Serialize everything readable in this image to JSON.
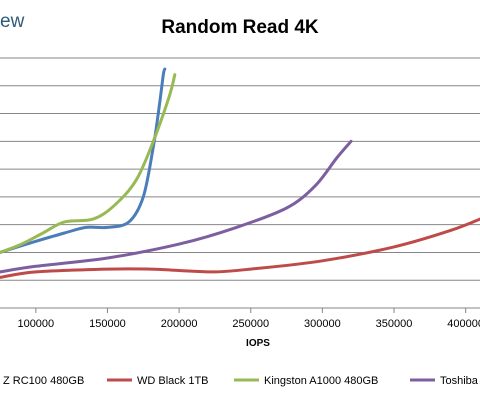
{
  "brand": {
    "logo_fragment": "ew"
  },
  "chart_data": {
    "type": "line",
    "title": "Random Read 4K",
    "xlabel": "IOPS",
    "ylabel": "",
    "xlim": [
      75000,
      410000
    ],
    "ylim": [
      0,
      9
    ],
    "x_ticks": [
      100000,
      150000,
      200000,
      250000,
      300000,
      350000,
      400000
    ],
    "x_tick_labels": [
      "100000",
      "150000",
      "200000",
      "250000",
      "300000",
      "350000",
      "400000"
    ],
    "y_gridlines": [
      1,
      2,
      3,
      4,
      5,
      6,
      7,
      8,
      9
    ],
    "grid": true,
    "legend_position": "bottom",
    "series": [
      {
        "name": "Z RC100 480GB",
        "color": "#4a7ebb",
        "points": [
          [
            75000,
            2.0
          ],
          [
            100000,
            2.4
          ],
          [
            120000,
            2.7
          ],
          [
            135000,
            2.9
          ],
          [
            150000,
            2.9
          ],
          [
            165000,
            3.1
          ],
          [
            175000,
            4.0
          ],
          [
            182000,
            5.8
          ],
          [
            186000,
            7.2
          ],
          [
            189000,
            8.4
          ],
          [
            190000,
            8.6
          ]
        ]
      },
      {
        "name": "WD Black 1TB",
        "color": "#be4b48",
        "points": [
          [
            75000,
            1.1
          ],
          [
            100000,
            1.3
          ],
          [
            150000,
            1.4
          ],
          [
            180000,
            1.4
          ],
          [
            200000,
            1.35
          ],
          [
            225000,
            1.3
          ],
          [
            250000,
            1.4
          ],
          [
            300000,
            1.7
          ],
          [
            350000,
            2.2
          ],
          [
            390000,
            2.8
          ],
          [
            410000,
            3.2
          ]
        ]
      },
      {
        "name": "Kingston A1000 480GB",
        "color": "#98b954",
        "points": [
          [
            75000,
            2.0
          ],
          [
            90000,
            2.3
          ],
          [
            105000,
            2.7
          ],
          [
            120000,
            3.1
          ],
          [
            140000,
            3.2
          ],
          [
            155000,
            3.7
          ],
          [
            170000,
            4.6
          ],
          [
            182000,
            6.0
          ],
          [
            193000,
            7.6
          ],
          [
            197000,
            8.4
          ]
        ]
      },
      {
        "name": "Toshiba",
        "color": "#7d5fa0",
        "points": [
          [
            75000,
            1.3
          ],
          [
            100000,
            1.5
          ],
          [
            150000,
            1.8
          ],
          [
            200000,
            2.3
          ],
          [
            240000,
            2.9
          ],
          [
            275000,
            3.6
          ],
          [
            295000,
            4.4
          ],
          [
            310000,
            5.4
          ],
          [
            320000,
            6.0
          ]
        ]
      }
    ]
  }
}
